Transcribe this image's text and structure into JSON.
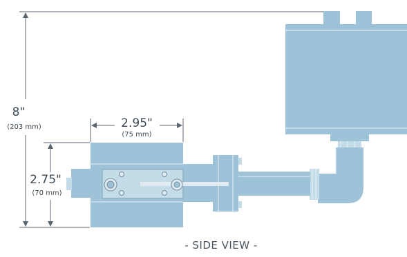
{
  "dimensions": {
    "height": {
      "imperial": "8\"",
      "metric": "(203 mm)"
    },
    "width": {
      "imperial": "2.95\"",
      "metric": "(75 mm)"
    },
    "depth": {
      "imperial": "2.75\"",
      "metric": "(70 mm)"
    }
  },
  "caption": "- SIDE VIEW -",
  "colors": {
    "body": "#9ec3d8",
    "body_light": "#c4dbe8",
    "dimension_line": "#5a6670",
    "text": "#3d4a54"
  }
}
